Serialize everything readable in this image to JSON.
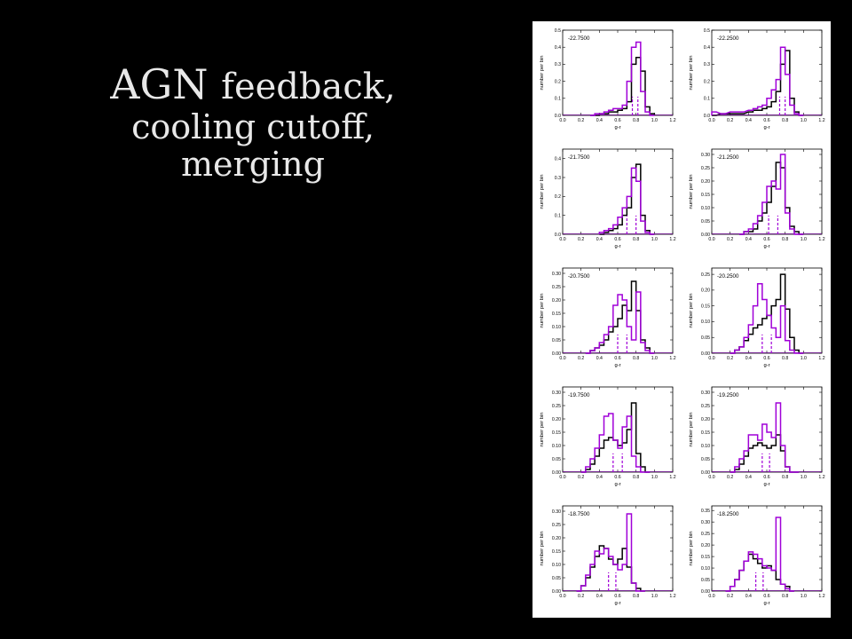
{
  "slide": {
    "title_word1": "AGN",
    "title_word2": "feedback,",
    "title_line2": "cooling cutoff,",
    "title_line3": "merging"
  },
  "colors": {
    "series_a": "#000000",
    "series_b": "#a000d8"
  },
  "chart_data": [
    {
      "type": "histogram",
      "label": "-22.7500",
      "xlabel": "g-r",
      "ylabel": "number per bin",
      "xlim": [
        0,
        1.2
      ],
      "ylim": [
        0,
        0.5
      ],
      "yticks": [
        0.0,
        0.1,
        0.2,
        0.3,
        0.4,
        0.5
      ],
      "xticks": [
        0.0,
        0.2,
        0.4,
        0.6,
        0.8,
        1.0,
        1.2
      ],
      "bins": [
        0.3,
        0.35,
        0.4,
        0.45,
        0.5,
        0.55,
        0.6,
        0.65,
        0.7,
        0.75,
        0.8,
        0.85,
        0.9,
        0.95
      ],
      "series": [
        {
          "values": [
            0.0,
            0.0,
            0.01,
            0.01,
            0.02,
            0.02,
            0.03,
            0.04,
            0.08,
            0.3,
            0.34,
            0.26,
            0.05,
            0.01
          ]
        },
        {
          "values": [
            0.0,
            0.01,
            0.01,
            0.02,
            0.03,
            0.04,
            0.04,
            0.06,
            0.2,
            0.4,
            0.43,
            0.14,
            0.02,
            0.0
          ]
        }
      ],
      "dashes": [
        0.76,
        0.82
      ]
    },
    {
      "type": "histogram",
      "label": "-22.2500",
      "xlabel": "g-r",
      "ylabel": "number per bin",
      "xlim": [
        0,
        1.2
      ],
      "ylim": [
        0,
        0.5
      ],
      "yticks": [
        0.0,
        0.1,
        0.2,
        0.3,
        0.4,
        0.5
      ],
      "xticks": [
        0.0,
        0.2,
        0.4,
        0.6,
        0.8,
        1.0,
        1.2
      ],
      "bins": [
        0.0,
        0.1,
        0.2,
        0.3,
        0.4,
        0.45,
        0.5,
        0.55,
        0.6,
        0.65,
        0.7,
        0.75,
        0.8,
        0.85,
        0.9,
        0.95
      ],
      "series": [
        {
          "values": [
            0.0,
            0.01,
            0.01,
            0.01,
            0.02,
            0.03,
            0.03,
            0.04,
            0.05,
            0.08,
            0.14,
            0.3,
            0.38,
            0.1,
            0.02,
            0.0
          ]
        },
        {
          "values": [
            0.02,
            0.01,
            0.02,
            0.02,
            0.03,
            0.04,
            0.05,
            0.06,
            0.1,
            0.15,
            0.21,
            0.4,
            0.24,
            0.06,
            0.01,
            0.0
          ]
        }
      ],
      "dashes": [
        0.74,
        0.8
      ]
    },
    {
      "type": "histogram",
      "label": "-21.7500",
      "xlabel": "g-r",
      "ylabel": "number per bin",
      "xlim": [
        0,
        1.2
      ],
      "ylim": [
        0,
        0.45
      ],
      "yticks": [
        0.0,
        0.1,
        0.2,
        0.3,
        0.4
      ],
      "xticks": [
        0.0,
        0.2,
        0.4,
        0.6,
        0.8,
        1.0,
        1.2
      ],
      "bins": [
        0.4,
        0.45,
        0.5,
        0.55,
        0.6,
        0.65,
        0.7,
        0.75,
        0.8,
        0.85,
        0.9,
        0.95
      ],
      "series": [
        {
          "values": [
            0.0,
            0.01,
            0.02,
            0.03,
            0.05,
            0.1,
            0.14,
            0.3,
            0.37,
            0.1,
            0.02,
            0.0
          ]
        },
        {
          "values": [
            0.01,
            0.02,
            0.03,
            0.05,
            0.09,
            0.14,
            0.2,
            0.35,
            0.28,
            0.07,
            0.01,
            0.0
          ]
        }
      ],
      "dashes": [
        0.7,
        0.8
      ]
    },
    {
      "type": "histogram",
      "label": "-21.2500",
      "xlabel": "g-r",
      "ylabel": "number per bin",
      "xlim": [
        0,
        1.2
      ],
      "ylim": [
        0,
        0.32
      ],
      "yticks": [
        0.0,
        0.05,
        0.1,
        0.15,
        0.2,
        0.25,
        0.3
      ],
      "xticks": [
        0.0,
        0.2,
        0.4,
        0.6,
        0.8,
        1.0,
        1.2
      ],
      "bins": [
        0.3,
        0.35,
        0.4,
        0.45,
        0.5,
        0.55,
        0.6,
        0.65,
        0.7,
        0.75,
        0.8,
        0.85,
        0.9,
        0.95
      ],
      "series": [
        {
          "values": [
            0.0,
            0.01,
            0.01,
            0.02,
            0.05,
            0.08,
            0.12,
            0.18,
            0.27,
            0.25,
            0.1,
            0.03,
            0.01,
            0.0
          ]
        },
        {
          "values": [
            0.0,
            0.01,
            0.02,
            0.04,
            0.07,
            0.12,
            0.18,
            0.2,
            0.17,
            0.3,
            0.08,
            0.02,
            0.0,
            0.0
          ]
        }
      ],
      "dashes": [
        0.62,
        0.72
      ]
    },
    {
      "type": "histogram",
      "label": "-20.7500",
      "xlabel": "g-r",
      "ylabel": "number per bin",
      "xlim": [
        0,
        1.2
      ],
      "ylim": [
        0,
        0.32
      ],
      "yticks": [
        0.0,
        0.05,
        0.1,
        0.15,
        0.2,
        0.25,
        0.3
      ],
      "xticks": [
        0.0,
        0.2,
        0.4,
        0.6,
        0.8,
        1.0,
        1.2
      ],
      "bins": [
        0.25,
        0.3,
        0.35,
        0.4,
        0.45,
        0.5,
        0.55,
        0.6,
        0.65,
        0.7,
        0.75,
        0.8,
        0.85,
        0.9,
        0.95
      ],
      "series": [
        {
          "values": [
            0.0,
            0.01,
            0.02,
            0.03,
            0.05,
            0.08,
            0.1,
            0.13,
            0.18,
            0.16,
            0.27,
            0.16,
            0.05,
            0.02,
            0.0
          ]
        },
        {
          "values": [
            0.0,
            0.01,
            0.02,
            0.04,
            0.07,
            0.1,
            0.18,
            0.22,
            0.2,
            0.1,
            0.05,
            0.23,
            0.04,
            0.01,
            0.0
          ]
        }
      ],
      "dashes": [
        0.6,
        0.7
      ]
    },
    {
      "type": "histogram",
      "label": "-20.2500",
      "xlabel": "g-r",
      "ylabel": "number per bin",
      "xlim": [
        0,
        1.2
      ],
      "ylim": [
        0,
        0.27
      ],
      "yticks": [
        0.0,
        0.05,
        0.1,
        0.15,
        0.2,
        0.25
      ],
      "xticks": [
        0.0,
        0.2,
        0.4,
        0.6,
        0.8,
        1.0,
        1.2
      ],
      "bins": [
        0.2,
        0.25,
        0.3,
        0.35,
        0.4,
        0.45,
        0.5,
        0.55,
        0.6,
        0.65,
        0.7,
        0.75,
        0.8,
        0.85,
        0.9,
        0.95
      ],
      "series": [
        {
          "values": [
            0.0,
            0.01,
            0.02,
            0.04,
            0.06,
            0.08,
            0.09,
            0.11,
            0.12,
            0.15,
            0.17,
            0.25,
            0.14,
            0.05,
            0.01,
            0.0
          ]
        },
        {
          "values": [
            0.0,
            0.01,
            0.02,
            0.05,
            0.09,
            0.15,
            0.22,
            0.17,
            0.12,
            0.08,
            0.05,
            0.15,
            0.04,
            0.01,
            0.0,
            0.0
          ]
        }
      ],
      "dashes": [
        0.55,
        0.65
      ]
    },
    {
      "type": "histogram",
      "label": "-19.7500",
      "xlabel": "g-r",
      "ylabel": "number per bin",
      "xlim": [
        0,
        1.2
      ],
      "ylim": [
        0,
        0.32
      ],
      "yticks": [
        0.0,
        0.05,
        0.1,
        0.15,
        0.2,
        0.25,
        0.3
      ],
      "xticks": [
        0.0,
        0.2,
        0.4,
        0.6,
        0.8,
        1.0,
        1.2
      ],
      "bins": [
        0.2,
        0.25,
        0.3,
        0.35,
        0.4,
        0.45,
        0.5,
        0.55,
        0.6,
        0.65,
        0.7,
        0.75,
        0.8,
        0.85,
        0.9
      ],
      "series": [
        {
          "values": [
            0.0,
            0.01,
            0.03,
            0.06,
            0.09,
            0.12,
            0.13,
            0.12,
            0.1,
            0.11,
            0.16,
            0.26,
            0.07,
            0.02,
            0.0
          ]
        },
        {
          "values": [
            0.0,
            0.02,
            0.05,
            0.09,
            0.14,
            0.21,
            0.22,
            0.12,
            0.09,
            0.17,
            0.21,
            0.06,
            0.02,
            0.0,
            0.0
          ]
        }
      ],
      "dashes": [
        0.55,
        0.65
      ]
    },
    {
      "type": "histogram",
      "label": "-19.2500",
      "xlabel": "g-r",
      "ylabel": "number per bin",
      "xlim": [
        0,
        1.2
      ],
      "ylim": [
        0,
        0.32
      ],
      "yticks": [
        0.0,
        0.05,
        0.1,
        0.15,
        0.2,
        0.25,
        0.3
      ],
      "xticks": [
        0.0,
        0.2,
        0.4,
        0.6,
        0.8,
        1.0,
        1.2
      ],
      "bins": [
        0.2,
        0.25,
        0.3,
        0.35,
        0.4,
        0.45,
        0.5,
        0.55,
        0.6,
        0.65,
        0.7,
        0.75,
        0.8,
        0.85,
        0.9
      ],
      "series": [
        {
          "values": [
            0.0,
            0.01,
            0.03,
            0.06,
            0.09,
            0.1,
            0.11,
            0.1,
            0.09,
            0.1,
            0.14,
            0.08,
            0.02,
            0.0,
            0.0
          ]
        },
        {
          "values": [
            0.0,
            0.02,
            0.05,
            0.08,
            0.14,
            0.14,
            0.12,
            0.18,
            0.15,
            0.13,
            0.26,
            0.1,
            0.02,
            0.0,
            0.0
          ]
        }
      ],
      "dashes": [
        0.55,
        0.63
      ]
    },
    {
      "type": "histogram",
      "label": "-18.7500",
      "xlabel": "g-r",
      "ylabel": "number per bin",
      "xlim": [
        0,
        1.2
      ],
      "ylim": [
        0,
        0.32
      ],
      "yticks": [
        0.0,
        0.05,
        0.1,
        0.15,
        0.2,
        0.25,
        0.3
      ],
      "xticks": [
        0.0,
        0.2,
        0.4,
        0.6,
        0.8,
        1.0,
        1.2
      ],
      "bins": [
        0.15,
        0.2,
        0.25,
        0.3,
        0.35,
        0.4,
        0.45,
        0.5,
        0.55,
        0.6,
        0.65,
        0.7,
        0.75,
        0.8,
        0.85
      ],
      "series": [
        {
          "values": [
            0.0,
            0.02,
            0.05,
            0.09,
            0.13,
            0.17,
            0.16,
            0.12,
            0.1,
            0.12,
            0.16,
            0.09,
            0.03,
            0.01,
            0.0
          ]
        },
        {
          "values": [
            0.0,
            0.02,
            0.06,
            0.1,
            0.15,
            0.14,
            0.16,
            0.13,
            0.1,
            0.08,
            0.1,
            0.29,
            0.03,
            0.0,
            0.0
          ]
        }
      ],
      "dashes": [
        0.5,
        0.58
      ]
    },
    {
      "type": "histogram",
      "label": "-18.2500",
      "xlabel": "g-r",
      "ylabel": "number per bin",
      "xlim": [
        0,
        1.2
      ],
      "ylim": [
        0,
        0.37
      ],
      "yticks": [
        0.0,
        0.05,
        0.1,
        0.15,
        0.2,
        0.25,
        0.3,
        0.35
      ],
      "xticks": [
        0.0,
        0.2,
        0.4,
        0.6,
        0.8,
        1.0,
        1.2
      ],
      "bins": [
        0.15,
        0.2,
        0.25,
        0.3,
        0.35,
        0.4,
        0.45,
        0.5,
        0.55,
        0.6,
        0.65,
        0.7,
        0.75,
        0.8,
        0.85
      ],
      "series": [
        {
          "values": [
            0.0,
            0.02,
            0.05,
            0.09,
            0.13,
            0.16,
            0.14,
            0.12,
            0.1,
            0.11,
            0.09,
            0.05,
            0.03,
            0.02,
            0.0
          ]
        },
        {
          "values": [
            0.0,
            0.02,
            0.05,
            0.09,
            0.13,
            0.17,
            0.16,
            0.14,
            0.11,
            0.1,
            0.09,
            0.32,
            0.03,
            0.01,
            0.0
          ]
        }
      ],
      "dashes": [
        0.48,
        0.56
      ]
    }
  ]
}
